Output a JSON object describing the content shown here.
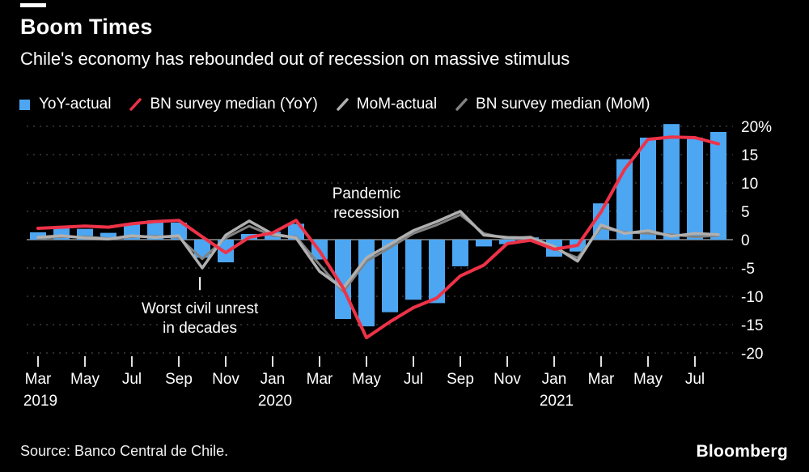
{
  "header": {
    "title": "Boom Times",
    "subtitle": "Chile's economy has rebounded out of recession on massive stimulus"
  },
  "legend": {
    "items": [
      {
        "key": "yoy-actual",
        "label": "YoY-actual",
        "icon": "square",
        "color": "#4DA6F2"
      },
      {
        "key": "bn-survey-yoy",
        "label": "BN survey median (YoY)",
        "icon": "line",
        "color": "#EE3248"
      },
      {
        "key": "mom-actual",
        "label": "MoM-actual",
        "icon": "line",
        "color": "#B0B0B0"
      },
      {
        "key": "bn-survey-mom",
        "label": "BN survey median (MoM)",
        "icon": "line",
        "color": "#828282"
      }
    ]
  },
  "chart_data": {
    "type": "bar+line",
    "title": "Boom Times",
    "subtitle": "Chile's economy has rebounded out of recession on massive stimulus",
    "legend_position": "top",
    "grid": true,
    "months": [
      "Mar 2019",
      "Apr 2019",
      "May 2019",
      "Jun 2019",
      "Jul 2019",
      "Aug 2019",
      "Sep 2019",
      "Oct 2019",
      "Nov 2019",
      "Dec 2019",
      "Jan 2020",
      "Feb 2020",
      "Mar 2020",
      "Apr 2020",
      "May 2020",
      "Jun 2020",
      "Jul 2020",
      "Aug 2020",
      "Sep 2020",
      "Oct 2020",
      "Nov 2020",
      "Dec 2020",
      "Jan 2021",
      "Feb 2021",
      "Mar 2021",
      "Apr 2021",
      "May 2021",
      "Jun 2021",
      "Jul 2021",
      "Aug 2021"
    ],
    "series": [
      {
        "key": "yoy-actual",
        "name": "YoY-actual",
        "type": "bar",
        "color": "#4DA6F2",
        "values": [
          1.3,
          2.2,
          1.9,
          1.2,
          2.9,
          3.4,
          3.0,
          -3.2,
          -4.0,
          1.0,
          1.4,
          2.8,
          -3.5,
          -14.0,
          -15.3,
          -12.8,
          -10.6,
          -11.2,
          -4.7,
          -1.2,
          -0.8,
          0.4,
          -3.0,
          -2.1,
          6.4,
          14.2,
          18.0,
          20.4,
          18.0,
          19.0
        ]
      },
      {
        "key": "bn-survey-yoy",
        "name": "BN survey median (YoY)",
        "type": "line",
        "color": "#EE3248",
        "width": 4,
        "values": [
          2.0,
          2.2,
          2.4,
          2.2,
          2.8,
          3.2,
          3.4,
          0.5,
          -2.3,
          0.4,
          1.2,
          3.4,
          -2.0,
          -8.5,
          -17.3,
          -14.5,
          -12.0,
          -10.3,
          -6.4,
          -4.5,
          -0.7,
          -0.1,
          -1.7,
          -1.0,
          4.9,
          12.4,
          17.7,
          18.1,
          18.0,
          16.9
        ]
      },
      {
        "key": "mom-actual",
        "name": "MoM-actual",
        "type": "line",
        "color": "#B0B0B0",
        "width": 3.5,
        "values": [
          0.4,
          0.7,
          0.3,
          0.1,
          0.7,
          0.4,
          0.7,
          -5.0,
          0.8,
          3.3,
          1.0,
          0.3,
          -5.6,
          -8.6,
          -3.2,
          -0.8,
          1.6,
          3.2,
          5.0,
          0.8,
          0.4,
          0.3,
          -1.2,
          -3.8,
          2.6,
          1.1,
          1.6,
          0.6,
          1.1,
          0.9
        ]
      },
      {
        "key": "bn-survey-mom",
        "name": "BN survey median (MoM)",
        "type": "line",
        "color": "#828282",
        "width": 3,
        "values": [
          0.2,
          0.5,
          0.5,
          0.2,
          0.5,
          0.6,
          0.4,
          -3.4,
          0.3,
          2.4,
          0.7,
          0.5,
          -4.4,
          -9.2,
          -3.8,
          -1.4,
          1.1,
          2.6,
          4.4,
          1.1,
          0.2,
          0.5,
          -1.6,
          -3.2,
          2.1,
          1.3,
          1.1,
          0.9,
          0.5,
          0.7
        ]
      }
    ],
    "y_axis": {
      "range": [
        -20,
        20
      ],
      "ticks": [
        {
          "value": 20,
          "label": "20%"
        },
        {
          "value": 15,
          "label": "15"
        },
        {
          "value": 10,
          "label": "10"
        },
        {
          "value": 5,
          "label": "5"
        },
        {
          "value": 0,
          "label": "0"
        },
        {
          "value": -5,
          "label": "-5"
        },
        {
          "value": -10,
          "label": "-10"
        },
        {
          "value": -15,
          "label": "-15"
        },
        {
          "value": -20,
          "label": "-20"
        }
      ]
    },
    "x_axis": {
      "ticks": [
        {
          "index": 0,
          "label": "Mar",
          "year": "2019"
        },
        {
          "index": 2,
          "label": "May"
        },
        {
          "index": 4,
          "label": "Jul"
        },
        {
          "index": 6,
          "label": "Sep"
        },
        {
          "index": 8,
          "label": "Nov"
        },
        {
          "index": 10,
          "label": "Jan",
          "year": "2020"
        },
        {
          "index": 12,
          "label": "Mar"
        },
        {
          "index": 14,
          "label": "May"
        },
        {
          "index": 16,
          "label": "Jul"
        },
        {
          "index": 18,
          "label": "Sep"
        },
        {
          "index": 20,
          "label": "Nov"
        },
        {
          "index": 22,
          "label": "Jan",
          "year": "2021"
        },
        {
          "index": 24,
          "label": "Mar"
        },
        {
          "index": 26,
          "label": "May"
        },
        {
          "index": 28,
          "label": "Jul"
        }
      ]
    },
    "annotations": [
      {
        "name": "pandemic-recession",
        "lines": [
          "Pandemic",
          "recession"
        ],
        "x_index": 14,
        "y_value": 7.3
      },
      {
        "name": "civil-unrest",
        "lines": [
          "Worst civil unrest",
          "in decades"
        ],
        "x_index": 6.9,
        "y_value": -13.0,
        "leader_from": -6.6,
        "leader_to": -8.9
      }
    ],
    "colors": {
      "background": "#000000",
      "bar_blue": "#4DA6F2",
      "line_red": "#EE3248",
      "line_gray": "#B0B0B0",
      "line_dark_gray": "#828282",
      "grid": "#464646",
      "zero_line": "#909090",
      "text": "#FFFFFF"
    }
  },
  "footer": {
    "source": "Source: Banco Central de Chile.",
    "logo": "Bloomberg"
  }
}
